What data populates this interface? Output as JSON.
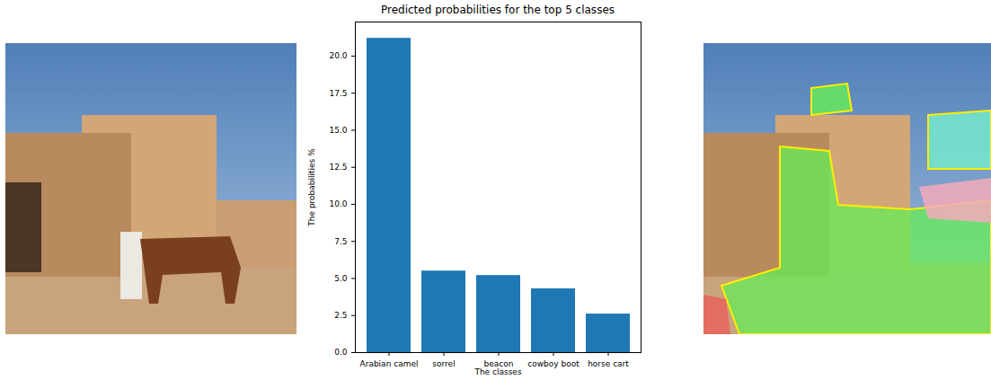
{
  "chart_data": {
    "type": "bar",
    "title": "Predicted probabilities for the top 5 classes",
    "x_label": "The classes",
    "y_label": "The probabilities %",
    "categories": [
      "Arabian camel",
      "sorrel",
      "beacon",
      "cowboy boot",
      "horse cart"
    ],
    "values": [
      21.2,
      5.5,
      5.2,
      4.3,
      2.6
    ],
    "color": "#1f77b4",
    "ylim": [
      0,
      22.3
    ],
    "yticks": [
      {
        "value": 0,
        "label": "0.0"
      },
      2.5,
      {
        "value": 5,
        "label": "5.0"
      },
      7.5,
      {
        "value": 10,
        "label": "10.0"
      },
      12.5,
      {
        "value": 15,
        "label": "15.0"
      },
      17.5,
      {
        "value": 20,
        "label": "20.0"
      }
    ],
    "grid": false
  }
}
